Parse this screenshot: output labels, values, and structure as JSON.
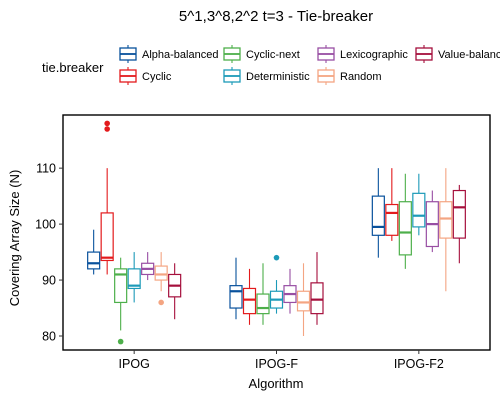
{
  "chart_data": {
    "type": "boxplot",
    "title": "5^1,3^8,2^2 t=3 - Tie-breaker",
    "xlabel": "Algorithm",
    "ylabel": "Covering Array Size (N)",
    "ylim": [
      77.5,
      119.5
    ],
    "yticks": [
      80,
      90,
      100,
      110
    ],
    "grid": false,
    "legend": {
      "title": "tie.breaker",
      "position": "top"
    },
    "categories": [
      "IPOG",
      "IPOG-F",
      "IPOG-F2"
    ],
    "series": [
      {
        "name": "Alpha-balanced",
        "color": "#08519c",
        "boxes": [
          {
            "min": 91,
            "q1": 92,
            "median": 93,
            "q3": 95,
            "max": 99,
            "outliers": []
          },
          {
            "min": 83,
            "q1": 85,
            "median": 88,
            "q3": 89,
            "max": 94,
            "outliers": []
          },
          {
            "min": 94,
            "q1": 98,
            "median": 99.5,
            "q3": 105,
            "max": 110,
            "outliers": []
          }
        ]
      },
      {
        "name": "Cyclic",
        "color": "#e31a1c",
        "boxes": [
          {
            "min": 91,
            "q1": 93.5,
            "median": 94,
            "q3": 102,
            "max": 110,
            "outliers": [
              117,
              118
            ]
          },
          {
            "min": 82,
            "q1": 84,
            "median": 86.5,
            "q3": 88.5,
            "max": 92,
            "outliers": []
          },
          {
            "min": 97,
            "q1": 98,
            "median": 102,
            "q3": 103.5,
            "max": 110,
            "outliers": []
          }
        ]
      },
      {
        "name": "Cyclic-next",
        "color": "#4daf4a",
        "boxes": [
          {
            "min": 81,
            "q1": 86,
            "median": 91,
            "q3": 92,
            "max": 94,
            "outliers": [
              79
            ]
          },
          {
            "min": 82,
            "q1": 84,
            "median": 85,
            "q3": 87.5,
            "max": 93,
            "outliers": []
          },
          {
            "min": 92,
            "q1": 94.5,
            "median": 98.5,
            "q3": 104,
            "max": 109,
            "outliers": []
          }
        ]
      },
      {
        "name": "Deterministic",
        "color": "#1c9ab8",
        "boxes": [
          {
            "min": 86,
            "q1": 88.5,
            "median": 89,
            "q3": 92,
            "max": 95,
            "outliers": []
          },
          {
            "min": 84,
            "q1": 85,
            "median": 86.5,
            "q3": 88,
            "max": 90,
            "outliers": [
              94
            ]
          },
          {
            "min": 98,
            "q1": 99.5,
            "median": 101.5,
            "q3": 105.5,
            "max": 109,
            "outliers": []
          }
        ]
      },
      {
        "name": "Lexicographic",
        "color": "#984ea3",
        "boxes": [
          {
            "min": 90,
            "q1": 91,
            "median": 92,
            "q3": 93,
            "max": 95,
            "outliers": []
          },
          {
            "min": 84,
            "q1": 86,
            "median": 87.5,
            "q3": 89,
            "max": 92,
            "outliers": []
          },
          {
            "min": 95,
            "q1": 96,
            "median": 100,
            "q3": 104,
            "max": 106,
            "outliers": []
          }
        ]
      },
      {
        "name": "Random",
        "color": "#f4a582",
        "boxes": [
          {
            "min": 88,
            "q1": 90,
            "median": 91,
            "q3": 92.5,
            "max": 95,
            "outliers": [
              86
            ]
          },
          {
            "min": 80,
            "q1": 84.5,
            "median": 86,
            "q3": 88,
            "max": 93,
            "outliers": []
          },
          {
            "min": 88,
            "q1": 97.5,
            "median": 101,
            "q3": 104,
            "max": 110,
            "outliers": []
          }
        ]
      },
      {
        "name": "Value-balanced",
        "color": "#a50f3c",
        "boxes": [
          {
            "min": 83,
            "q1": 87,
            "median": 89,
            "q3": 91,
            "max": 93,
            "outliers": []
          },
          {
            "min": 82,
            "q1": 84,
            "median": 86.5,
            "q3": 89.5,
            "max": 95,
            "outliers": []
          },
          {
            "min": 93,
            "q1": 97.5,
            "median": 103,
            "q3": 106,
            "max": 107,
            "outliers": []
          }
        ]
      }
    ]
  }
}
